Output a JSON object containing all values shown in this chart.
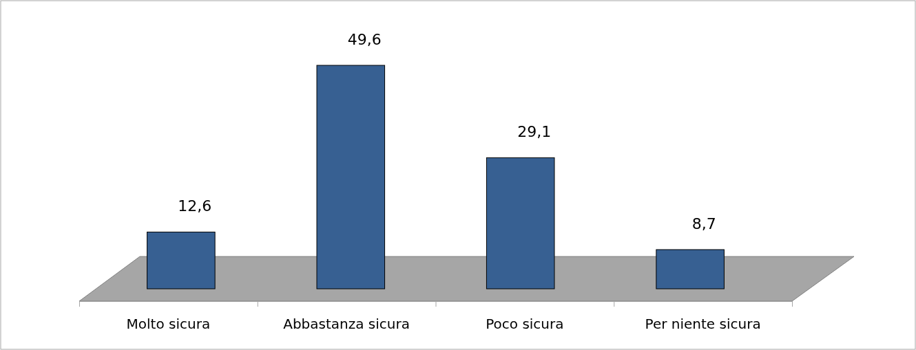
{
  "chart_data": {
    "type": "bar",
    "categories": [
      "Molto sicura",
      "Abbastanza sicura",
      "Poco sicura",
      "Per niente sicura"
    ],
    "values": [
      12.6,
      49.6,
      29.1,
      8.7
    ],
    "value_labels": [
      "12,6",
      "49,6",
      "29,1",
      "8,7"
    ],
    "color": "#376092"
  }
}
